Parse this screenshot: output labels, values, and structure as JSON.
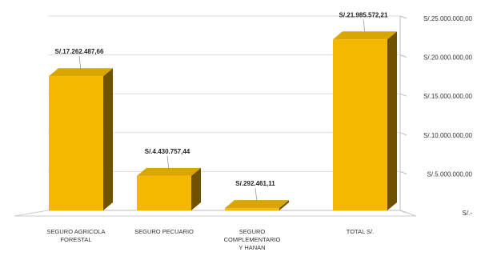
{
  "chart_data": {
    "type": "bar",
    "title": "",
    "xlabel": "",
    "ylabel": "",
    "categories": [
      "TOTAL S/.",
      "SEGURO COMPLEMENTARIO Y HANAN",
      "SEGURO PECUARIO",
      "SEGURO AGRICOLA FORESTAL"
    ],
    "values": [
      21985572.21,
      292461.11,
      4430757.44,
      17262487.66
    ],
    "data_labels": [
      "S/.21.985.572,21",
      "S/.292.461,11",
      "S/.4.430.757,44",
      "S/.17.262.487,66"
    ],
    "yticks": [
      "S/.-",
      "S/.5.000.000,00",
      "S/.10.000.000,00",
      "S/.15.000.000,00",
      "S/.20.000.000,00",
      "S/.25.000.000,00"
    ],
    "ylim": [
      0,
      25000000
    ],
    "grid": true,
    "mirrored": true,
    "colors": {
      "front": "#F5B800",
      "top": "#D9A600",
      "side": "#6E5200"
    }
  }
}
